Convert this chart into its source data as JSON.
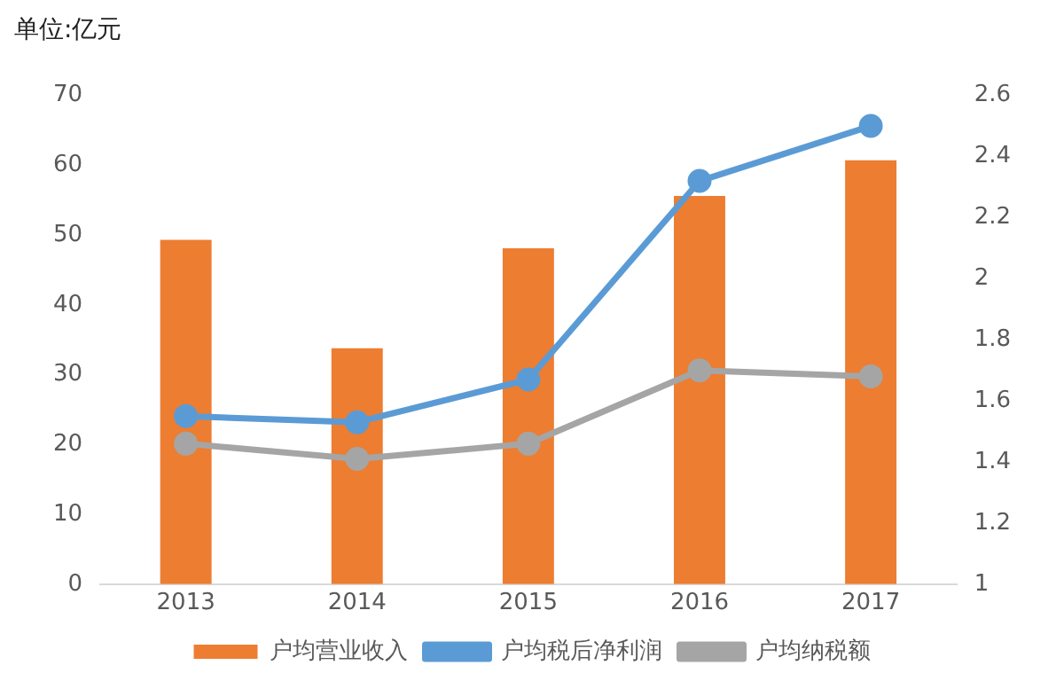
{
  "chart_data": {
    "type": "bar",
    "ylabel": "单位:亿元",
    "categories": [
      "2013",
      "2014",
      "2015",
      "2016",
      "2017"
    ],
    "series": [
      {
        "name": "户均营业收入",
        "color": "#ed7d31",
        "values": [
          49.3,
          33.8,
          48.1,
          55.6,
          60.7
        ]
      },
      {
        "name": "户均税后净利润",
        "type": "line",
        "axis": "y2",
        "color": "#5b9bd5",
        "values": [
          1.55,
          1.53,
          1.67,
          2.32,
          2.5
        ]
      },
      {
        "name": "户均纳税额",
        "type": "line",
        "axis": "y2",
        "color": "#a5a5a5",
        "values": [
          1.46,
          1.41,
          1.46,
          1.7,
          1.68
        ]
      }
    ],
    "ylim": [
      0,
      70
    ],
    "yticks": [
      0,
      10,
      20,
      30,
      40,
      50,
      60,
      70
    ],
    "y2lim": [
      1,
      2.6
    ],
    "y2ticks": [
      1,
      1.2,
      1.4,
      1.6,
      1.8,
      2,
      2.2,
      2.4,
      2.6
    ],
    "grid": false,
    "legend": "bottom",
    "marker": "circle"
  }
}
